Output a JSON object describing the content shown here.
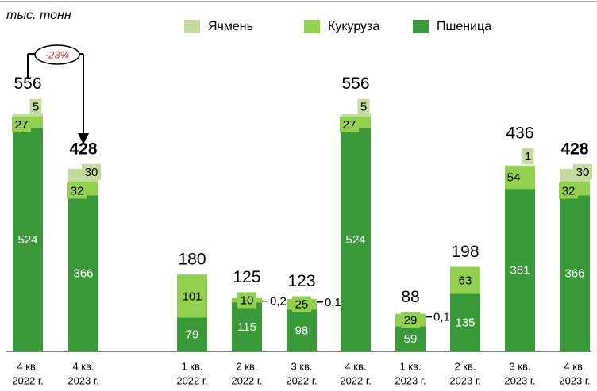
{
  "chart_data": {
    "type": "stacked_bar",
    "unit_label": "тыс. тонн",
    "annotation": "-23%",
    "categories": [
      [
        "4 кв.",
        "2022 г."
      ],
      [
        "4 кв.",
        "2023 г."
      ],
      [
        "1 кв.",
        "2022 г."
      ],
      [
        "2 кв.",
        "2022 г."
      ],
      [
        "3 кв.",
        "2022 г."
      ],
      [
        "4 кв.",
        "2022 г."
      ],
      [
        "1 кв.",
        "2023 г."
      ],
      [
        "2 кв.",
        "2023 г."
      ],
      [
        "3 кв.",
        "2023 г."
      ],
      [
        "4 кв.",
        "2023 г."
      ]
    ],
    "series": [
      {
        "name": "Пшеница",
        "color": "#3a9a3a",
        "values": [
          524,
          366,
          79,
          115,
          98,
          524,
          59,
          135,
          381,
          366
        ]
      },
      {
        "name": "Кукуруза",
        "color": "#92d050",
        "values": [
          27,
          32,
          101,
          10,
          25,
          27,
          29,
          63,
          54,
          32
        ]
      },
      {
        "name": "Ячмень",
        "color": "#c4dba0",
        "values": [
          5,
          30,
          null,
          0.2,
          0.1,
          5,
          0.1,
          null,
          1,
          30
        ],
        "value_labels": [
          "5",
          "30",
          null,
          "0,2",
          "0,1",
          "5",
          "0,1",
          null,
          "1",
          "30"
        ]
      }
    ],
    "totals": [
      556,
      428,
      180,
      125,
      123,
      556,
      88,
      198,
      436,
      428
    ],
    "legend_order": [
      "Ячмень",
      "Кукуруза",
      "Пшеница"
    ]
  }
}
